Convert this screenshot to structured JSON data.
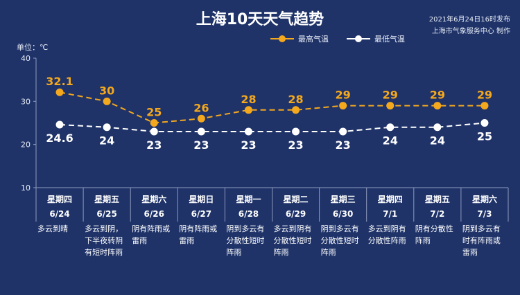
{
  "header": {
    "title": "上海10天天气趋势",
    "issue_time": "2021年6月24日16时发布",
    "issuer": "上海市气象服务中心 制作",
    "unit": "单位：℃"
  },
  "colors": {
    "background": "#1f3369",
    "high": "#f4a81d",
    "low": "#ffffff",
    "grid": "#8f9bbd"
  },
  "chart_data": {
    "type": "line",
    "title": "上海10天天气趋势",
    "ylim": [
      10,
      40
    ],
    "yticks": [
      10,
      20,
      30,
      40
    ],
    "grid": false,
    "legend_position": "top-right",
    "categories": [
      "6/24",
      "6/25",
      "6/26",
      "6/27",
      "6/28",
      "6/29",
      "6/30",
      "7/1",
      "7/2",
      "7/3"
    ],
    "weekdays": [
      "星期四",
      "星期五",
      "星期六",
      "星期日",
      "星期一",
      "星期二",
      "星期三",
      "星期四",
      "星期五",
      "星期六"
    ],
    "series": [
      {
        "name": "最高气温",
        "values": [
          32.1,
          30,
          25,
          26,
          28,
          28,
          29,
          29,
          29,
          29
        ],
        "labels": [
          "32.1",
          "30",
          "25",
          "26",
          "28",
          "28",
          "29",
          "29",
          "29",
          "29"
        ]
      },
      {
        "name": "最低气温",
        "values": [
          24.6,
          24,
          23,
          23,
          23,
          23,
          23,
          24,
          24,
          25
        ],
        "labels": [
          "24.6",
          "24",
          "23",
          "23",
          "23",
          "23",
          "23",
          "24",
          "24",
          "25"
        ]
      }
    ],
    "descriptions": [
      "多云到晴",
      "多云到阴，下半夜转阴有短时阵雨",
      "阴有阵雨或雷雨",
      "阴有阵雨或雷雨",
      "阴到多云有分散性短时阵雨",
      "多云到阴有分散性短时阵雨",
      "阴到多云有分散性短时阵雨",
      "多云到阴有分散性阵雨",
      "阴有分散性阵雨",
      "阴到多云有时有阵雨或雷雨"
    ]
  }
}
